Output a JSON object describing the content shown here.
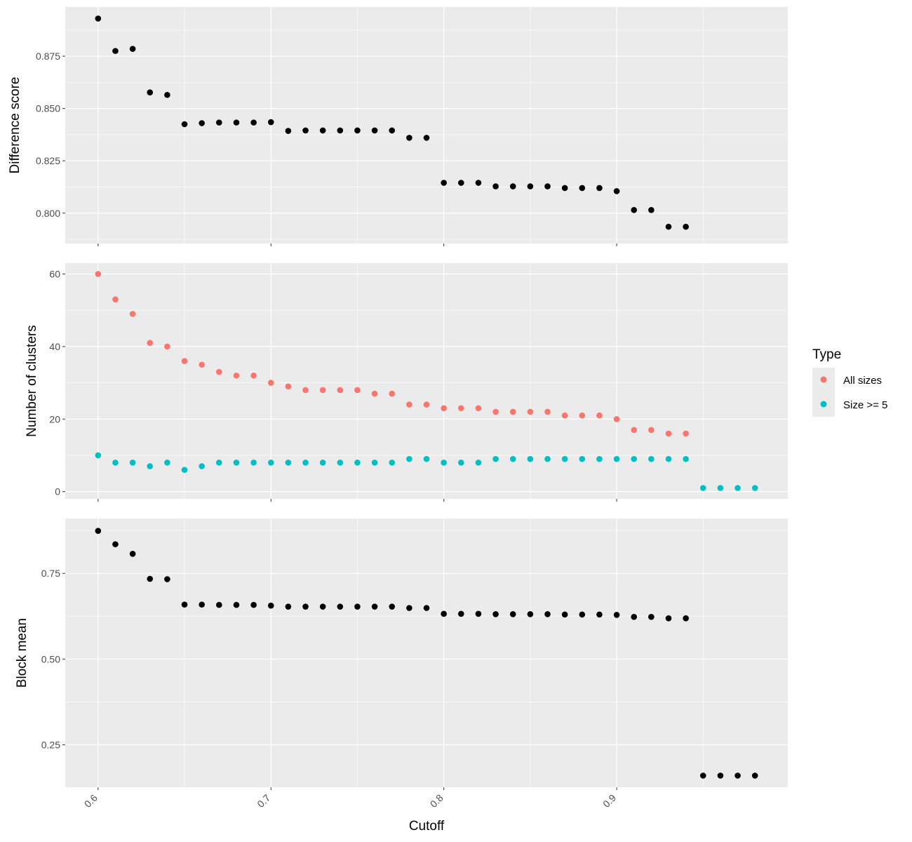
{
  "figure": {
    "xlabel": "Cutoff",
    "x_ticks": [
      0.6,
      0.7,
      0.8,
      0.9
    ],
    "x_tick_labels": [
      "0.6",
      "0.7",
      "0.8",
      "0.9"
    ],
    "xlim": [
      0.581,
      0.999
    ],
    "panel_background": "#ebebeb",
    "grid_color": "#ffffff"
  },
  "legend": {
    "title": "Type",
    "items": [
      {
        "label": "All sizes",
        "color": "#F8766D"
      },
      {
        "label": "Size >= 5",
        "color": "#00BFC4"
      }
    ]
  },
  "chart_data": [
    {
      "type": "scatter",
      "ylabel": "Difference score",
      "ylim": [
        0.7855,
        0.8985
      ],
      "y_ticks": [
        0.8,
        0.825,
        0.85,
        0.875
      ],
      "y_tick_labels": [
        "0.800",
        "0.825",
        "0.850",
        "0.875"
      ],
      "series": [
        {
          "color": "#000000",
          "x": [
            0.6,
            0.61,
            0.62,
            0.63,
            0.64,
            0.65,
            0.66,
            0.67,
            0.68,
            0.69,
            0.7,
            0.71,
            0.72,
            0.73,
            0.74,
            0.75,
            0.76,
            0.77,
            0.78,
            0.79,
            0.8,
            0.81,
            0.82,
            0.83,
            0.84,
            0.85,
            0.86,
            0.87,
            0.88,
            0.89,
            0.9,
            0.91,
            0.92,
            0.93,
            0.94
          ],
          "y": [
            0.893,
            0.8775,
            0.8785,
            0.8577,
            0.8565,
            0.8425,
            0.843,
            0.8433,
            0.8433,
            0.8433,
            0.8435,
            0.8393,
            0.8395,
            0.8395,
            0.8395,
            0.8395,
            0.8395,
            0.8395,
            0.836,
            0.836,
            0.8145,
            0.8145,
            0.8145,
            0.8128,
            0.8128,
            0.8128,
            0.8128,
            0.812,
            0.812,
            0.812,
            0.8105,
            0.8015,
            0.8015,
            0.7935,
            0.7935
          ]
        }
      ]
    },
    {
      "type": "scatter",
      "ylabel": "Number of clusters",
      "ylim": [
        -2,
        63
      ],
      "y_ticks": [
        0,
        20,
        40,
        60
      ],
      "y_tick_labels": [
        "0",
        "20",
        "40",
        "60"
      ],
      "series": [
        {
          "name": "All sizes",
          "color": "#F8766D",
          "x": [
            0.6,
            0.61,
            0.62,
            0.63,
            0.64,
            0.65,
            0.66,
            0.67,
            0.68,
            0.69,
            0.7,
            0.71,
            0.72,
            0.73,
            0.74,
            0.75,
            0.76,
            0.77,
            0.78,
            0.79,
            0.8,
            0.81,
            0.82,
            0.83,
            0.84,
            0.85,
            0.86,
            0.87,
            0.88,
            0.89,
            0.9,
            0.91,
            0.92,
            0.93,
            0.94
          ],
          "y": [
            60,
            53,
            49,
            41,
            40,
            36,
            35,
            33,
            32,
            32,
            30,
            29,
            28,
            28,
            28,
            28,
            27,
            27,
            24,
            24,
            23,
            23,
            23,
            22,
            22,
            22,
            22,
            21,
            21,
            21,
            20,
            17,
            17,
            16,
            16
          ]
        },
        {
          "name": "Size >= 5",
          "color": "#00BFC4",
          "x": [
            0.6,
            0.61,
            0.62,
            0.63,
            0.64,
            0.65,
            0.66,
            0.67,
            0.68,
            0.69,
            0.7,
            0.71,
            0.72,
            0.73,
            0.74,
            0.75,
            0.76,
            0.77,
            0.78,
            0.79,
            0.8,
            0.81,
            0.82,
            0.83,
            0.84,
            0.85,
            0.86,
            0.87,
            0.88,
            0.89,
            0.9,
            0.91,
            0.92,
            0.93,
            0.94,
            0.95,
            0.96,
            0.97,
            0.98
          ],
          "y": [
            10,
            8,
            8,
            7,
            8,
            6,
            7,
            8,
            8,
            8,
            8,
            8,
            8,
            8,
            8,
            8,
            8,
            8,
            9,
            9,
            8,
            8,
            8,
            9,
            9,
            9,
            9,
            9,
            9,
            9,
            9,
            9,
            9,
            9,
            9,
            1,
            1,
            1,
            1
          ]
        }
      ]
    },
    {
      "type": "scatter",
      "ylabel": "Block mean",
      "ylim": [
        0.126,
        0.91
      ],
      "y_ticks": [
        0.25,
        0.5,
        0.75
      ],
      "y_tick_labels": [
        "0.25",
        "0.50",
        "0.75"
      ],
      "series": [
        {
          "color": "#000000",
          "x": [
            0.6,
            0.61,
            0.62,
            0.63,
            0.64,
            0.65,
            0.66,
            0.67,
            0.68,
            0.69,
            0.7,
            0.71,
            0.72,
            0.73,
            0.74,
            0.75,
            0.76,
            0.77,
            0.78,
            0.79,
            0.8,
            0.81,
            0.82,
            0.83,
            0.84,
            0.85,
            0.86,
            0.87,
            0.88,
            0.89,
            0.9,
            0.91,
            0.92,
            0.93,
            0.94,
            0.95,
            0.96,
            0.97,
            0.98
          ],
          "y": [
            0.874,
            0.835,
            0.807,
            0.734,
            0.733,
            0.659,
            0.659,
            0.658,
            0.658,
            0.658,
            0.656,
            0.653,
            0.653,
            0.653,
            0.653,
            0.653,
            0.653,
            0.653,
            0.649,
            0.649,
            0.632,
            0.632,
            0.632,
            0.631,
            0.631,
            0.631,
            0.631,
            0.63,
            0.63,
            0.63,
            0.629,
            0.623,
            0.623,
            0.619,
            0.619,
            0.16,
            0.16,
            0.16,
            0.16
          ]
        }
      ]
    }
  ]
}
